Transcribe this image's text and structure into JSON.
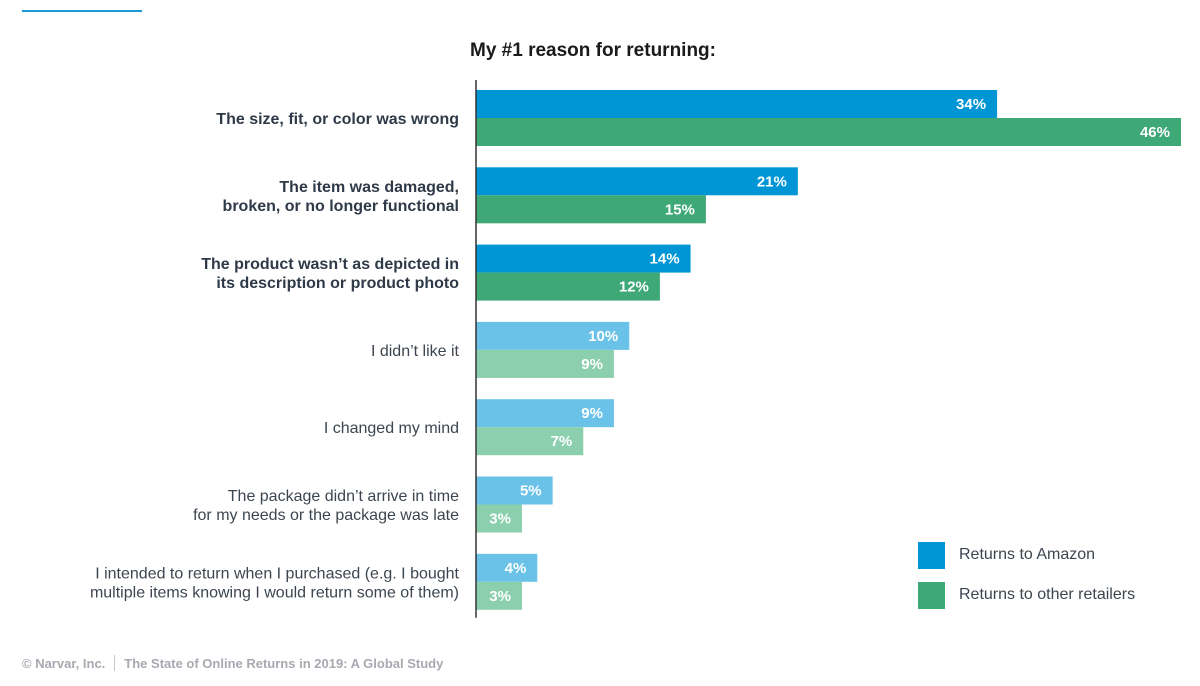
{
  "colors": {
    "amazon_strong": "#0096d6",
    "other_strong": "#3fa877",
    "amazon_light": "#6bc2e8",
    "other_light": "#8ccfae",
    "accent": "#1a9ad6",
    "axis": "#333333"
  },
  "chart_data": {
    "type": "bar",
    "orientation": "horizontal",
    "title": "My #1 reason for returning:",
    "categories": [
      {
        "lines": [
          "The size, fit, or color was wrong"
        ],
        "bold": true
      },
      {
        "lines": [
          "The item was damaged,",
          "broken, or no longer functional"
        ],
        "bold": true
      },
      {
        "lines": [
          "The product wasn’t as depicted in",
          "its description or product photo"
        ],
        "bold": true
      },
      {
        "lines": [
          "I didn’t like it"
        ],
        "bold": false
      },
      {
        "lines": [
          "I changed my mind"
        ],
        "bold": false
      },
      {
        "lines": [
          "The package didn’t arrive in time",
          "for my needs or the package was late"
        ],
        "bold": false
      },
      {
        "lines": [
          "I intended to return when I purchased (e.g. I bought",
          "multiple items knowing I would return some of them)"
        ],
        "bold": false
      }
    ],
    "series": [
      {
        "name": "Returns to Amazon",
        "values": [
          34,
          21,
          14,
          10,
          9,
          5,
          4
        ],
        "labels": [
          "34%",
          "21%",
          "14%",
          "10%",
          "9%",
          "5%",
          "4%"
        ]
      },
      {
        "name": "Returns to other retailers",
        "values": [
          46,
          15,
          12,
          9,
          7,
          3,
          3
        ],
        "labels": [
          "46%",
          "15%",
          "12%",
          "9%",
          "7%",
          "3%",
          "3%"
        ]
      }
    ],
    "xlim": [
      0,
      46
    ],
    "grid": false,
    "legend": "bottom-right"
  },
  "legend": {
    "amazon": "Returns to Amazon",
    "other": "Returns to other retailers"
  },
  "footer": {
    "company": "© Narvar, Inc.",
    "report": "The State of Online Returns in 2019: A Global Study"
  }
}
